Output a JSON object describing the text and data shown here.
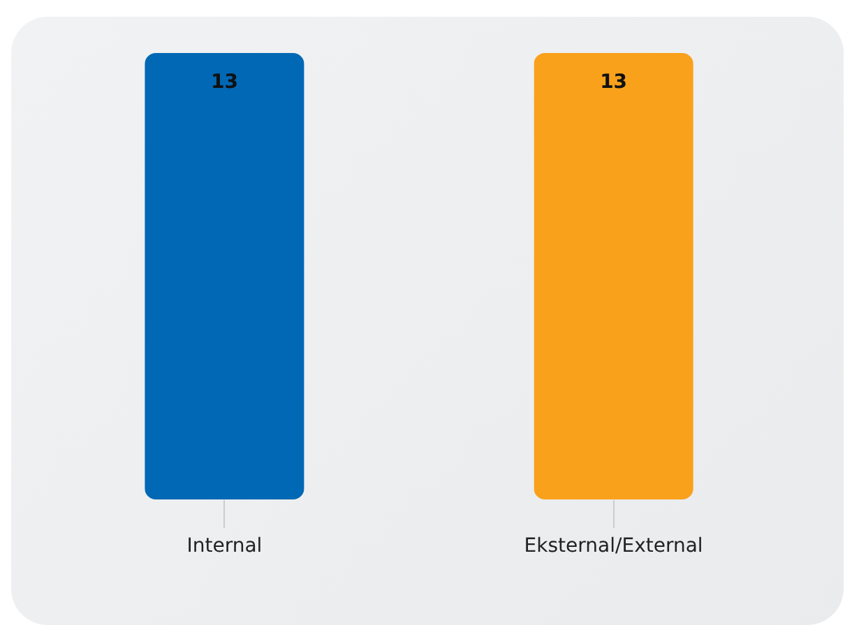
{
  "chart_data": {
    "type": "bar",
    "categories": [
      "Internal",
      "Eksternal/External"
    ],
    "values": [
      13,
      13
    ],
    "colors": [
      "#0068b5",
      "#f9a11b"
    ],
    "data_labels": true,
    "tick_labels": "x"
  }
}
